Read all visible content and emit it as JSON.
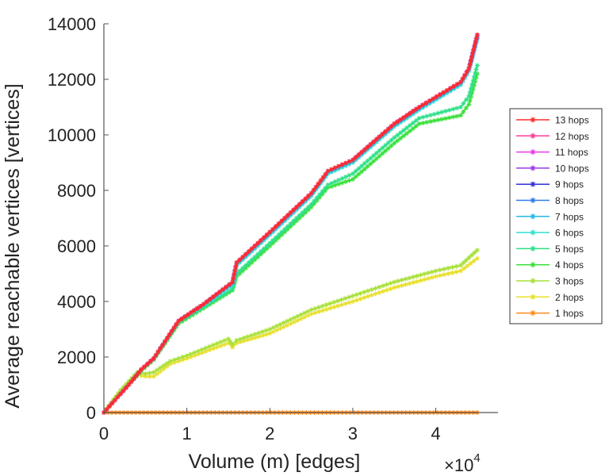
{
  "chart_data": {
    "type": "line",
    "title": "",
    "xlabel": "Volume (m) [edges]",
    "ylabel": "Average reachable vertices [vertices]",
    "x_exponent_base": "×10",
    "x_exponent_power": "4",
    "xlim": [
      0,
      4.75
    ],
    "ylim": [
      0,
      14000
    ],
    "x_ticks": [
      0,
      1,
      2,
      3,
      4
    ],
    "x_tick_labels": [
      "0",
      "1",
      "2",
      "3",
      "4"
    ],
    "y_ticks": [
      0,
      2000,
      4000,
      6000,
      8000,
      10000,
      12000,
      14000
    ],
    "y_tick_labels": [
      "0",
      "2000",
      "4000",
      "6000",
      "8000",
      "10000",
      "12000",
      "14000"
    ],
    "grid": false,
    "legend_position": "right",
    "series": [
      {
        "name": "13 hops",
        "color": "#ff2a2a",
        "x": [
          0,
          0.3,
          0.45,
          0.6,
          0.9,
          1.2,
          1.55,
          1.6,
          2.0,
          2.5,
          2.7,
          3.0,
          3.5,
          3.8,
          4.3,
          4.4,
          4.5
        ],
        "y": [
          0,
          1000,
          1550,
          1950,
          3300,
          3900,
          4700,
          5400,
          6500,
          7900,
          8700,
          9100,
          10400,
          11000,
          11900,
          12400,
          13600
        ]
      },
      {
        "name": "12 hops",
        "color": "#ff3a9a",
        "x": [
          0,
          0.3,
          0.45,
          0.6,
          0.9,
          1.2,
          1.55,
          1.6,
          2.0,
          2.5,
          2.7,
          3.0,
          3.5,
          3.8,
          4.3,
          4.4,
          4.5
        ],
        "y": [
          0,
          1000,
          1550,
          1950,
          3300,
          3900,
          4700,
          5400,
          6500,
          7900,
          8700,
          9100,
          10400,
          11000,
          11900,
          12400,
          13600
        ]
      },
      {
        "name": "11 hops",
        "color": "#e83ae8",
        "x": [
          0,
          0.3,
          0.45,
          0.6,
          0.9,
          1.2,
          1.55,
          1.6,
          2.0,
          2.5,
          2.7,
          3.0,
          3.5,
          3.8,
          4.3,
          4.4,
          4.5
        ],
        "y": [
          0,
          1000,
          1550,
          1950,
          3300,
          3900,
          4700,
          5400,
          6500,
          7900,
          8700,
          9100,
          10400,
          11000,
          11900,
          12400,
          13600
        ]
      },
      {
        "name": "10 hops",
        "color": "#9a3ae8",
        "x": [
          0,
          0.3,
          0.45,
          0.6,
          0.9,
          1.2,
          1.55,
          1.6,
          2.0,
          2.5,
          2.7,
          3.0,
          3.5,
          3.8,
          4.3,
          4.4,
          4.5
        ],
        "y": [
          0,
          1000,
          1550,
          1950,
          3300,
          3900,
          4700,
          5400,
          6500,
          7900,
          8700,
          9100,
          10400,
          11000,
          11900,
          12400,
          13600
        ]
      },
      {
        "name": "9 hops",
        "color": "#3030d8",
        "x": [
          0,
          0.3,
          0.45,
          0.6,
          0.9,
          1.2,
          1.55,
          1.6,
          2.0,
          2.5,
          2.7,
          3.0,
          3.5,
          3.8,
          4.3,
          4.4,
          4.5
        ],
        "y": [
          0,
          1000,
          1550,
          1950,
          3300,
          3900,
          4700,
          5400,
          6500,
          7900,
          8700,
          9100,
          10400,
          11000,
          11900,
          12400,
          13600
        ]
      },
      {
        "name": "8 hops",
        "color": "#2f7ae8",
        "x": [
          0,
          0.3,
          0.45,
          0.6,
          0.9,
          1.2,
          1.55,
          1.6,
          2.0,
          2.5,
          2.7,
          3.0,
          3.5,
          3.8,
          4.3,
          4.4,
          4.5
        ],
        "y": [
          0,
          1000,
          1550,
          1950,
          3300,
          3900,
          4700,
          5400,
          6500,
          7900,
          8700,
          9100,
          10400,
          11000,
          11900,
          12400,
          13550
        ]
      },
      {
        "name": "7 hops",
        "color": "#25b8e8",
        "x": [
          0,
          0.3,
          0.45,
          0.6,
          0.9,
          1.2,
          1.55,
          1.6,
          2.0,
          2.5,
          2.7,
          3.0,
          3.5,
          3.8,
          4.3,
          4.4,
          4.5
        ],
        "y": [
          0,
          1000,
          1550,
          1950,
          3300,
          3900,
          4650,
          5350,
          6450,
          7850,
          8650,
          9050,
          10350,
          10950,
          11850,
          12350,
          13500
        ]
      },
      {
        "name": "6 hops",
        "color": "#2ee0d0",
        "x": [
          0,
          0.3,
          0.45,
          0.6,
          0.9,
          1.2,
          1.55,
          1.6,
          2.0,
          2.5,
          2.7,
          3.0,
          3.5,
          3.8,
          4.3,
          4.4,
          4.5
        ],
        "y": [
          0,
          1000,
          1550,
          1950,
          3300,
          3850,
          4600,
          5300,
          6400,
          7800,
          8600,
          9000,
          10300,
          10900,
          11800,
          12300,
          13450
        ]
      },
      {
        "name": "5 hops",
        "color": "#2ee08a",
        "x": [
          0,
          0.3,
          0.45,
          0.6,
          0.9,
          1.2,
          1.55,
          1.6,
          2.0,
          2.5,
          2.7,
          3.0,
          3.5,
          3.8,
          4.3,
          4.4,
          4.5
        ],
        "y": [
          0,
          1000,
          1550,
          1950,
          3250,
          3800,
          4450,
          5000,
          6100,
          7500,
          8200,
          8600,
          9900,
          10600,
          11000,
          11400,
          12500
        ]
      },
      {
        "name": "4 hops",
        "color": "#3ae03a",
        "x": [
          0,
          0.3,
          0.45,
          0.6,
          0.9,
          1.2,
          1.55,
          1.6,
          2.0,
          2.5,
          2.7,
          3.0,
          3.5,
          3.8,
          4.3,
          4.4,
          4.5
        ],
        "y": [
          0,
          1000,
          1500,
          1900,
          3200,
          3750,
          4400,
          4900,
          6000,
          7400,
          8100,
          8400,
          9700,
          10400,
          10700,
          11100,
          12200
        ]
      },
      {
        "name": "3 hops",
        "color": "#a8e03a",
        "x": [
          0,
          0.2,
          0.4,
          0.5,
          0.6,
          0.8,
          1.0,
          1.5,
          1.55,
          1.6,
          2.0,
          2.5,
          3.0,
          3.5,
          4.0,
          4.3,
          4.5
        ],
        "y": [
          0,
          800,
          1450,
          1400,
          1450,
          1850,
          2050,
          2650,
          2450,
          2600,
          3000,
          3700,
          4200,
          4700,
          5100,
          5300,
          5850
        ]
      },
      {
        "name": "2 hops",
        "color": "#e8e02e",
        "x": [
          0,
          0.2,
          0.4,
          0.5,
          0.6,
          0.8,
          1.0,
          1.5,
          1.55,
          1.6,
          2.0,
          2.5,
          3.0,
          3.5,
          4.0,
          4.3,
          4.5
        ],
        "y": [
          0,
          750,
          1350,
          1300,
          1300,
          1750,
          1950,
          2500,
          2350,
          2500,
          2850,
          3550,
          4000,
          4500,
          4900,
          5100,
          5550
        ]
      },
      {
        "name": "1 hops",
        "color": "#ff8a1a",
        "x": [
          0,
          4.5
        ],
        "y": [
          0,
          0
        ]
      }
    ]
  }
}
